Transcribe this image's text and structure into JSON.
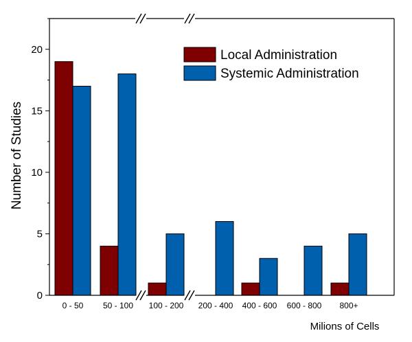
{
  "chart_data": {
    "type": "bar",
    "title": "",
    "xlabel": "Milions of Cells",
    "ylabel": "Number of Studies",
    "ylim": [
      0,
      22.5
    ],
    "yticks": [
      0,
      5,
      10,
      15,
      20
    ],
    "grid": false,
    "legend_position": "top-right",
    "axis_breaks_after": [
      "50 - 100",
      "100 - 200"
    ],
    "categories": [
      "0 - 50",
      "50 - 100",
      "100 - 200",
      "200 - 400",
      "400 - 600",
      "600 - 800",
      "800+"
    ],
    "series": [
      {
        "name": "Local Administration",
        "color": "#7f0000",
        "values": [
          19,
          4,
          1,
          0,
          1,
          0,
          1
        ]
      },
      {
        "name": "Systemic Administration",
        "color": "#0060ad",
        "values": [
          17,
          18,
          5,
          6,
          3,
          4,
          5
        ]
      }
    ]
  }
}
